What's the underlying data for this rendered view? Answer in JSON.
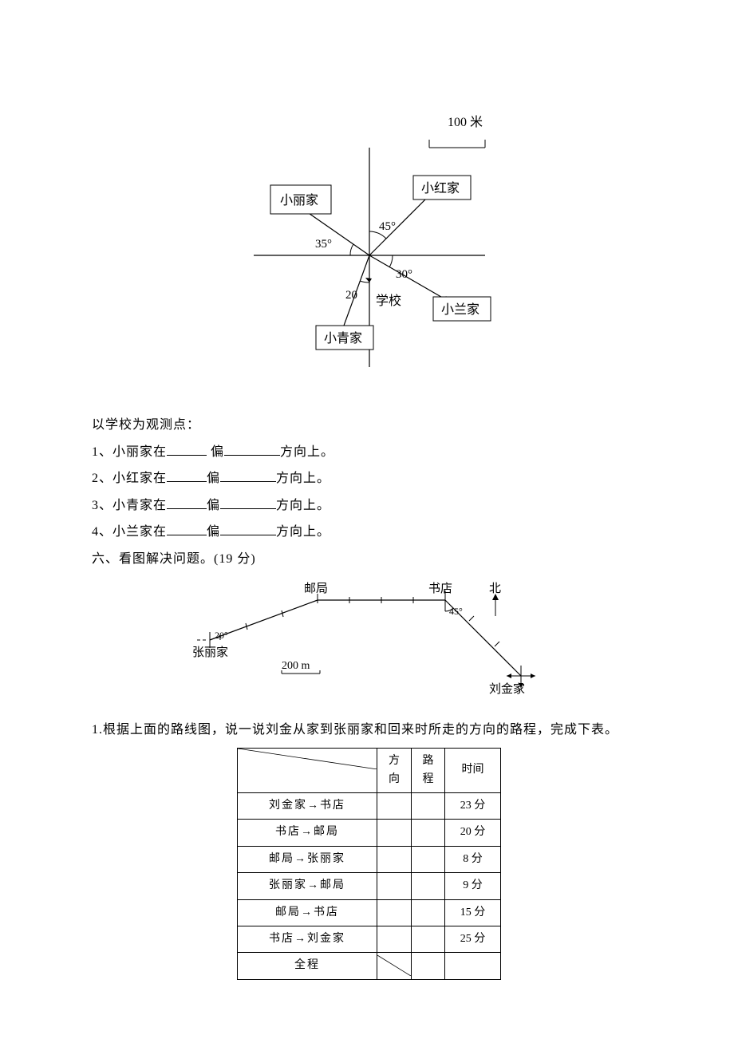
{
  "diagram1": {
    "scale_label": "100 米",
    "center_label": "学校",
    "homes": {
      "xiaoli": "小丽家",
      "xiaohong": "小红家",
      "xiaolan": "小兰家",
      "xiaoqing": "小青家"
    },
    "angles": {
      "ne": "45°",
      "nw": "35°",
      "se": "30°",
      "sw": "20"
    },
    "colors": {
      "stroke": "#000000",
      "fill": "#ffffff"
    }
  },
  "questions": {
    "intro": "以学校为观测点：",
    "q1": {
      "pre": "1、小丽家在",
      "mid": " 偏",
      "post": "方向上。"
    },
    "q2": {
      "pre": "2、小红家在",
      "mid": "偏",
      "post": "方向上。"
    },
    "q3": {
      "pre": "3、小青家在",
      "mid": "偏",
      "post": "方向上。"
    },
    "q4": {
      "pre": "4、小兰家在",
      "mid": "偏",
      "post": "方向上。"
    },
    "section6": "六、看图解决问题。(19 分)"
  },
  "diagram2": {
    "labels": {
      "post": "邮局",
      "bookstore": "书店",
      "north": "北",
      "zhangli": "张丽家",
      "liujin": "刘金家",
      "angle_sw": "20°",
      "angle_se": "45°",
      "scale": "200 m"
    },
    "colors": {
      "stroke": "#000000"
    }
  },
  "problem1": {
    "text": "1.根据上面的路线图，说一说刘金从家到张丽家和回来时所走的方向的路程，完成下表。"
  },
  "table": {
    "headers": {
      "dir": "方向",
      "dist": "路程",
      "time": "时间"
    },
    "rows": [
      {
        "route": "刘金家→书店",
        "time": "23 分"
      },
      {
        "route": "书店→邮局",
        "time": "20 分"
      },
      {
        "route": "邮局→张丽家",
        "time": "8 分"
      },
      {
        "route": "张丽家→邮局",
        "time": "9 分"
      },
      {
        "route": "邮局→书店",
        "time": "15 分"
      },
      {
        "route": "书店→刘金家",
        "time": "25 分"
      },
      {
        "route": "全程",
        "time": ""
      }
    ],
    "last_row_diag": true
  }
}
